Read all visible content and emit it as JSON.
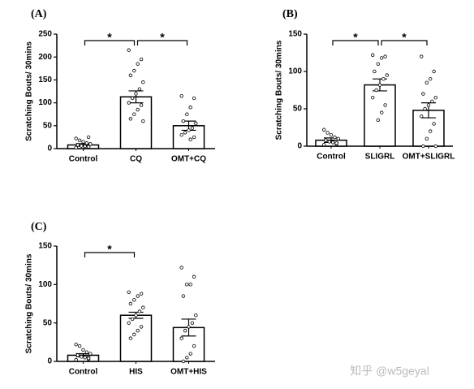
{
  "chart_data": [
    {
      "type": "bar",
      "panel": "(A)",
      "ylabel": "Scratching Bouts/ 30mins",
      "categories": [
        "Control",
        "CQ",
        "OMT+CQ"
      ],
      "values": [
        8,
        113,
        50
      ],
      "errors": [
        3,
        13,
        10
      ],
      "points": [
        [
          2,
          4,
          5,
          6,
          8,
          10,
          12,
          15,
          18,
          22,
          25,
          5
        ],
        [
          215,
          195,
          185,
          170,
          160,
          145,
          130,
          120,
          110,
          100,
          95,
          85,
          75,
          65,
          60
        ],
        [
          115,
          110,
          90,
          75,
          60,
          55,
          45,
          40,
          35,
          30,
          25,
          20
        ]
      ],
      "ylim": [
        0,
        250
      ],
      "yticks": [
        0,
        50,
        100,
        150,
        200,
        250
      ],
      "significance": [
        {
          "between": [
            "Control",
            "CQ"
          ],
          "label": "*"
        },
        {
          "between": [
            "CQ",
            "OMT+CQ"
          ],
          "label": "*"
        }
      ]
    },
    {
      "type": "bar",
      "panel": "(B)",
      "ylabel": "Scratching Bouts/ 30mins",
      "categories": [
        "Control",
        "SLIGRL",
        "OMT+SLIGRL"
      ],
      "values": [
        8,
        82,
        48
      ],
      "errors": [
        3,
        8,
        10
      ],
      "points": [
        [
          2,
          3,
          5,
          6,
          8,
          10,
          12,
          15,
          18,
          22,
          4
        ],
        [
          122,
          120,
          118,
          110,
          100,
          95,
          90,
          82,
          75,
          65,
          55,
          45,
          35
        ],
        [
          120,
          100,
          90,
          85,
          70,
          65,
          60,
          55,
          50,
          40,
          30,
          20,
          10,
          0,
          0
        ]
      ],
      "ylim": [
        0,
        150
      ],
      "yticks": [
        0,
        50,
        100,
        150
      ],
      "significance": [
        {
          "between": [
            "Control",
            "SLIGRL"
          ],
          "label": "*"
        },
        {
          "between": [
            "SLIGRL",
            "OMT+SLIGRL"
          ],
          "label": "*"
        }
      ]
    },
    {
      "type": "bar",
      "panel": "(C)",
      "ylabel": "Scratching Bouts/ 30mins",
      "categories": [
        "Control",
        "HIS",
        "OMT+HIS"
      ],
      "values": [
        8,
        60,
        44
      ],
      "errors": [
        2,
        4,
        11
      ],
      "points": [
        [
          2,
          3,
          5,
          6,
          8,
          10,
          12,
          15,
          20,
          22,
          4
        ],
        [
          90,
          88,
          85,
          80,
          75,
          70,
          65,
          60,
          55,
          50,
          45,
          40,
          35,
          30
        ],
        [
          122,
          110,
          100,
          100,
          85,
          60,
          50,
          45,
          40,
          30,
          20,
          10,
          5,
          0
        ]
      ],
      "ylim": [
        0,
        150
      ],
      "yticks": [
        0,
        50,
        100,
        150
      ],
      "significance": [
        {
          "between": [
            "Control",
            "HIS"
          ],
          "label": "*"
        }
      ]
    }
  ],
  "watermark": "知乎 @w5geyal"
}
